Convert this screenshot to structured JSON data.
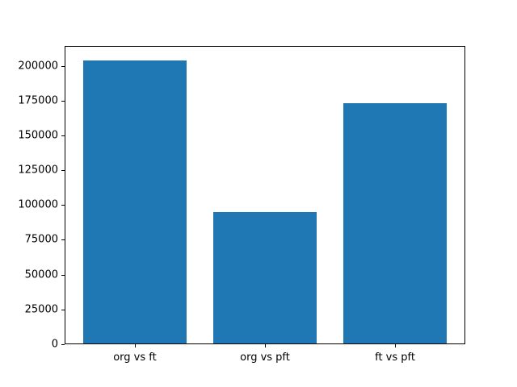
{
  "figure": {
    "background": "#ffffff",
    "spine_color": "#000000",
    "tick_label_color": "#000000"
  },
  "chart_data": {
    "type": "bar",
    "title": "",
    "xlabel": "",
    "ylabel": "",
    "categories": [
      "org vs ft",
      "org vs pft",
      "ft vs pft"
    ],
    "values": [
      204000,
      95000,
      173000
    ],
    "yticks": [
      0,
      25000,
      50000,
      75000,
      100000,
      125000,
      150000,
      175000,
      200000
    ],
    "ylim": [
      0,
      214200
    ],
    "xlim": [
      -0.54,
      2.54
    ],
    "bar_width": 0.8,
    "bar_color": "#1f77b4",
    "grid": false,
    "legend_position": "none"
  }
}
